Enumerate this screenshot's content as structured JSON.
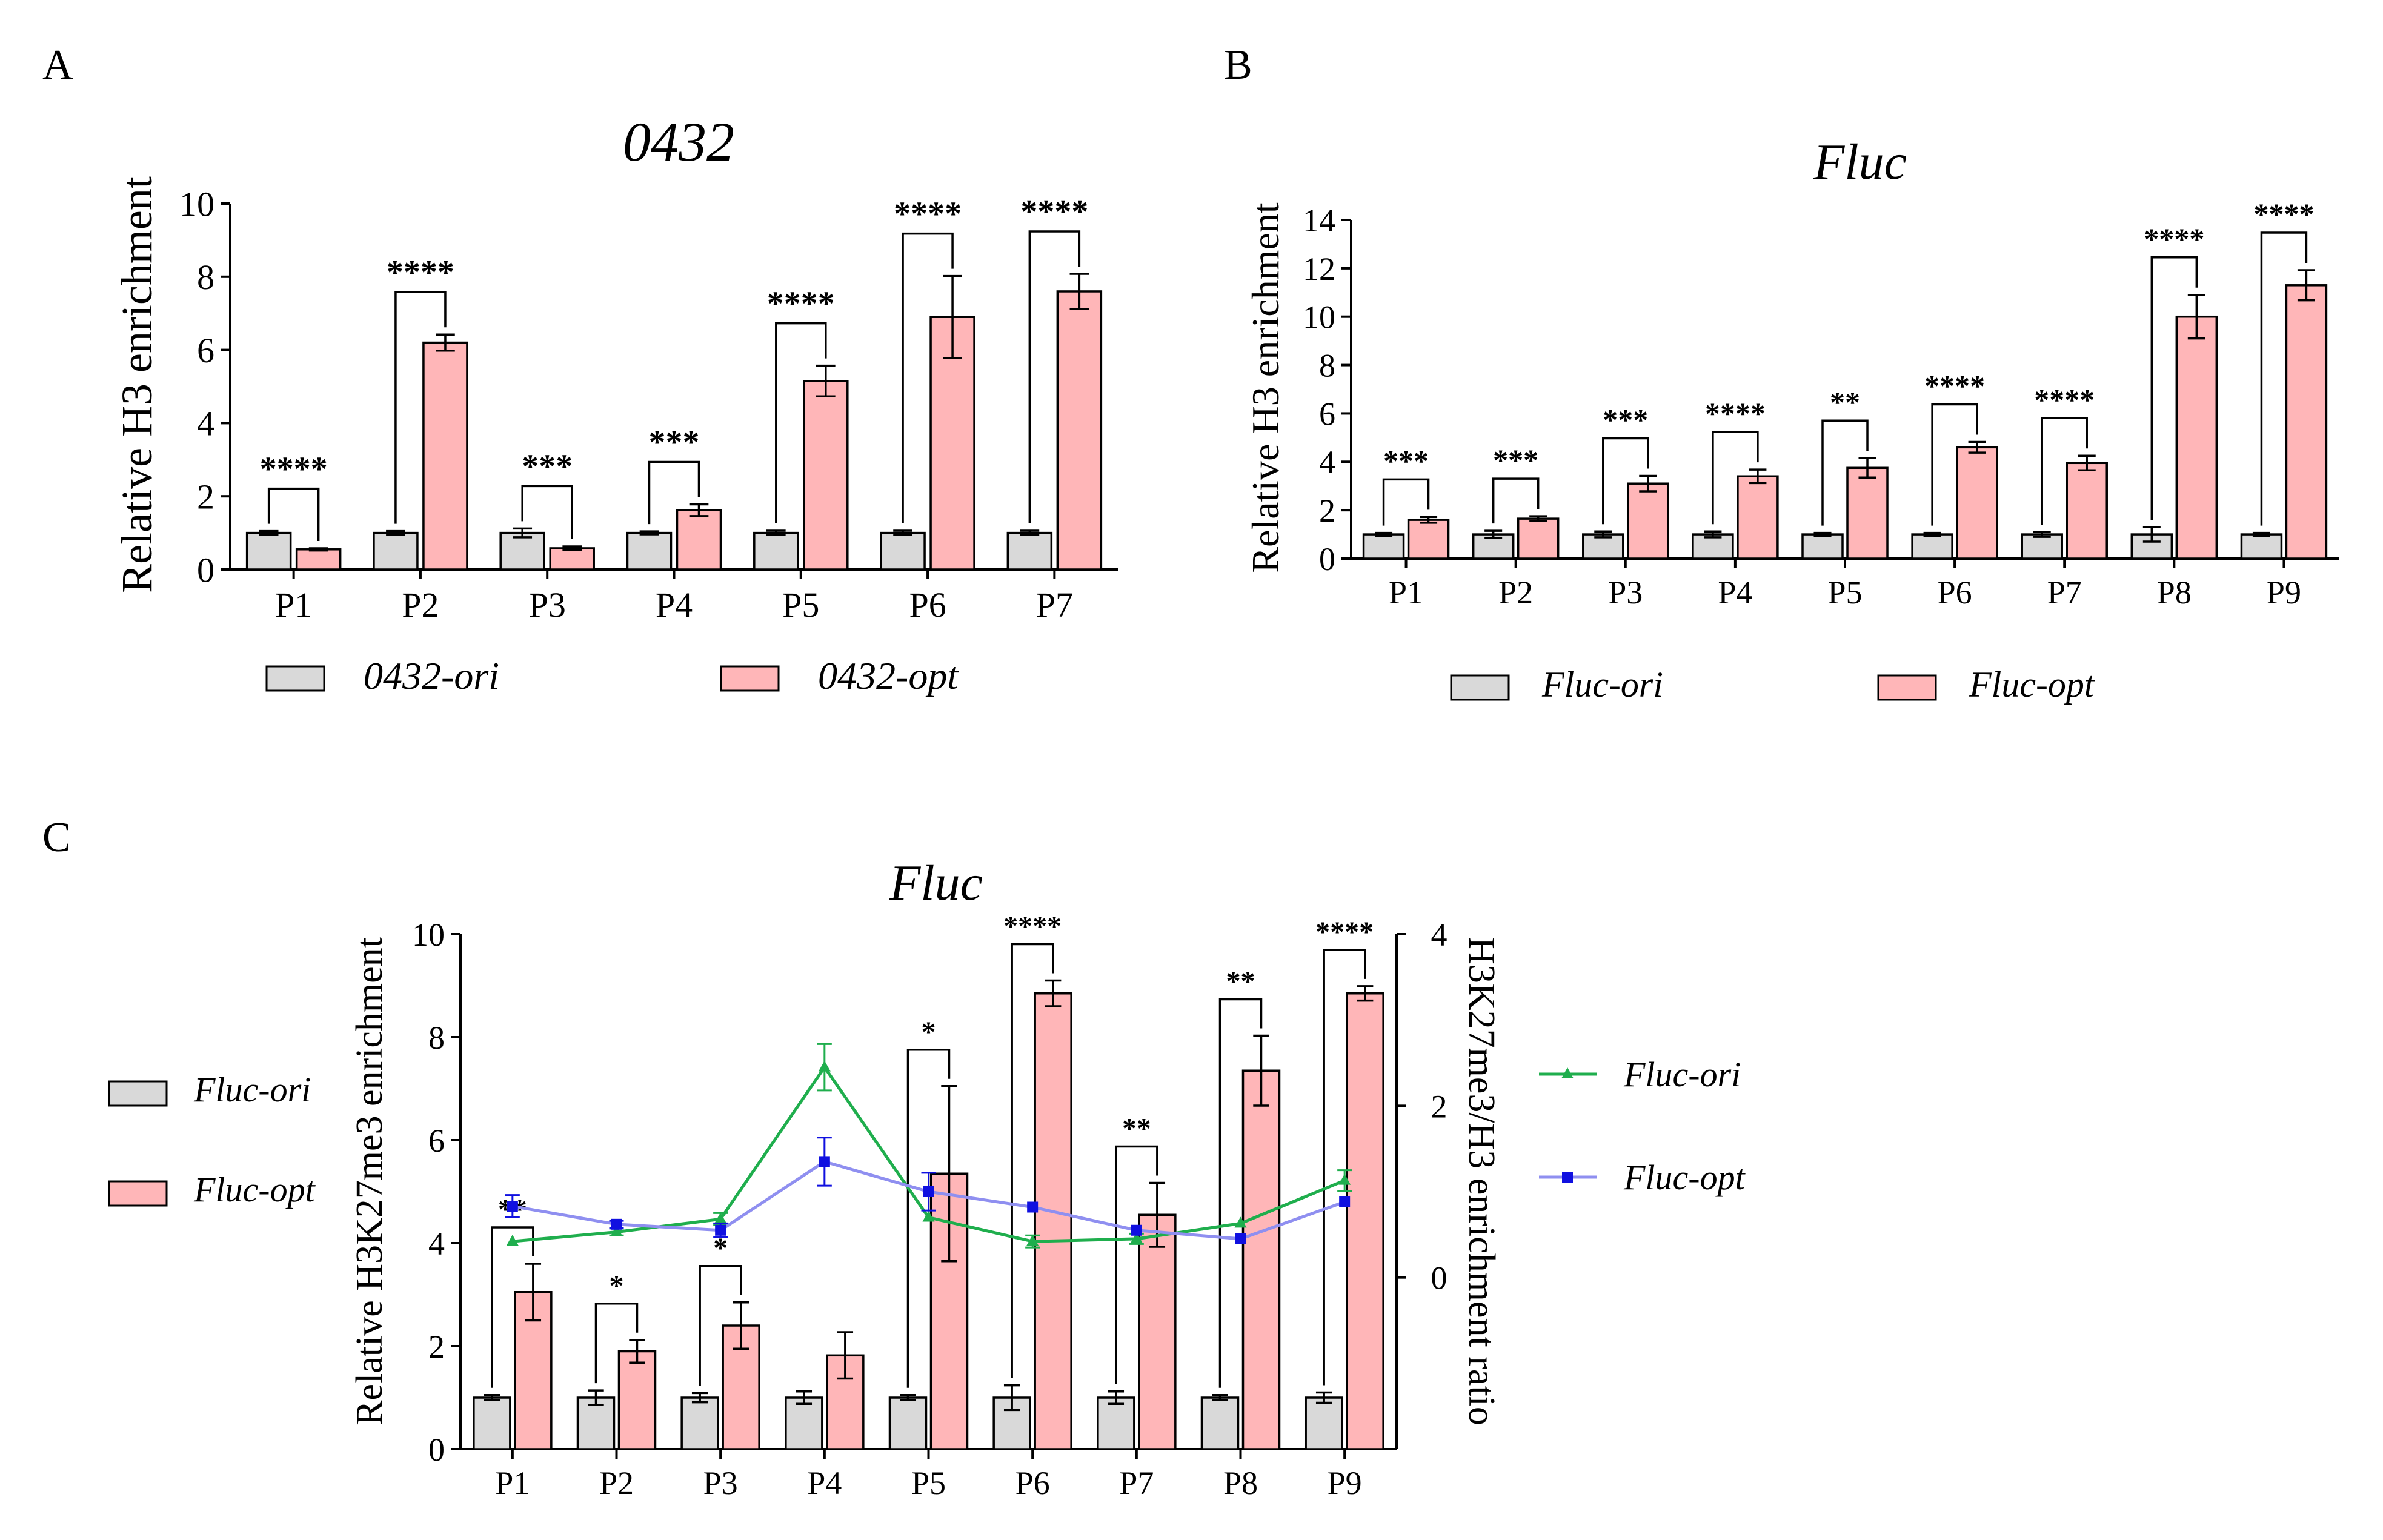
{
  "figure": {
    "panel_labels": [
      "A",
      "B",
      "C"
    ]
  },
  "chart_data": [
    {
      "panel": "A",
      "type": "bar",
      "title": "0432",
      "ylabel": "Relative H3 enrichment",
      "xlabel": "",
      "ylim": [
        0,
        10
      ],
      "yticks": [
        "0",
        "2",
        "4",
        "6",
        "8",
        "10"
      ],
      "categories": [
        "P1",
        "P2",
        "P3",
        "P4",
        "P5",
        "P6",
        "P7"
      ],
      "colors": {
        "ori": "#d9d9d9",
        "opt": "#ffb6b8"
      },
      "series": [
        {
          "name": "0432-ori",
          "values": [
            1.0,
            1.0,
            1.0,
            1.0,
            1.0,
            1.0,
            1.0
          ],
          "errors": [
            0.05,
            0.05,
            0.12,
            0.04,
            0.06,
            0.06,
            0.06
          ]
        },
        {
          "name": "0432-opt",
          "values": [
            0.55,
            6.2,
            0.58,
            1.62,
            5.15,
            6.9,
            7.6
          ],
          "errors": [
            0.03,
            0.22,
            0.05,
            0.16,
            0.42,
            1.12,
            0.48
          ]
        }
      ],
      "significance": [
        "****",
        "****",
        "***",
        "***",
        "****",
        "****",
        "****"
      ],
      "legend": [
        "0432-ori",
        "0432-opt"
      ]
    },
    {
      "panel": "B",
      "type": "bar",
      "title": "Fluc",
      "ylabel": "Relative H3 enrichment",
      "xlabel": "",
      "ylim": [
        0,
        14
      ],
      "yticks": [
        "0",
        "2",
        "4",
        "6",
        "8",
        "10",
        "12",
        "14"
      ],
      "categories": [
        "P1",
        "P2",
        "P3",
        "P4",
        "P5",
        "P6",
        "P7",
        "P8",
        "P9"
      ],
      "colors": {
        "ori": "#d9d9d9",
        "opt": "#ffb6b8"
      },
      "series": [
        {
          "name": "Fluc-ori",
          "values": [
            1.0,
            1.0,
            1.0,
            1.0,
            1.0,
            1.0,
            1.0,
            1.0,
            1.0
          ],
          "errors": [
            0.06,
            0.15,
            0.12,
            0.12,
            0.06,
            0.06,
            0.1,
            0.3,
            0.06
          ]
        },
        {
          "name": "Fluc-opt",
          "values": [
            1.6,
            1.65,
            3.1,
            3.4,
            3.75,
            4.6,
            3.95,
            10.0,
            11.3
          ],
          "errors": [
            0.12,
            0.1,
            0.32,
            0.28,
            0.4,
            0.22,
            0.3,
            0.9,
            0.62
          ]
        }
      ],
      "significance": [
        "***",
        "***",
        "***",
        "****",
        "**",
        "****",
        "****",
        "****",
        "****"
      ],
      "legend": [
        "Fluc-ori",
        "Fluc-opt"
      ]
    },
    {
      "panel": "C",
      "type": "bar",
      "title": "Fluc",
      "ylabel": "Relative H3K27me3 enrichment",
      "y2label": "H3K27me3/H3 enrichment ratio",
      "xlabel": "",
      "ylim": [
        0,
        10
      ],
      "yticks": [
        "0",
        "2",
        "4",
        "6",
        "8",
        "10"
      ],
      "y2lim": [
        -2,
        4
      ],
      "y2ticks": [
        "0",
        "2",
        "4"
      ],
      "categories": [
        "P1",
        "P2",
        "P3",
        "P4",
        "P5",
        "P6",
        "P7",
        "P8",
        "P9"
      ],
      "colors": {
        "ori": "#d9d9d9",
        "opt": "#ffb6b8",
        "ori_line": "#1fae4d",
        "opt_line": "#8f8ff0",
        "opt_marker": "#1010e0"
      },
      "series": [
        {
          "name": "Fluc-ori",
          "values": [
            1.0,
            1.0,
            1.0,
            1.0,
            1.0,
            1.0,
            1.0,
            1.0,
            1.0
          ],
          "errors": [
            0.05,
            0.14,
            0.09,
            0.12,
            0.05,
            0.24,
            0.12,
            0.05,
            0.1
          ]
        },
        {
          "name": "Fluc-opt",
          "values": [
            3.05,
            1.9,
            2.4,
            1.82,
            5.35,
            8.85,
            4.55,
            7.35,
            8.85
          ],
          "errors": [
            0.55,
            0.22,
            0.45,
            0.45,
            1.7,
            0.25,
            0.62,
            0.68,
            0.14
          ]
        }
      ],
      "line_series": [
        {
          "name": "Fluc-ori",
          "values": [
            0.42,
            0.53,
            0.68,
            2.45,
            0.7,
            0.42,
            0.45,
            0.63,
            1.13
          ],
          "errors": [
            0,
            0.04,
            0.07,
            0.27,
            0,
            0.07,
            0.06,
            0,
            0.12
          ]
        },
        {
          "name": "Fluc-opt",
          "values": [
            0.83,
            0.62,
            0.55,
            1.35,
            1.0,
            0.82,
            0.55,
            0.45,
            0.88
          ],
          "errors": [
            0.13,
            0.04,
            0.08,
            0.28,
            0.22,
            0,
            0,
            0,
            0
          ]
        }
      ],
      "significance": [
        "**",
        "*",
        "*",
        "",
        "*",
        "****",
        "**",
        "**",
        "****"
      ],
      "legend": [
        "Fluc-ori",
        "Fluc-opt"
      ],
      "line_legend": [
        "Fluc-ori",
        "Fluc-opt"
      ]
    }
  ]
}
